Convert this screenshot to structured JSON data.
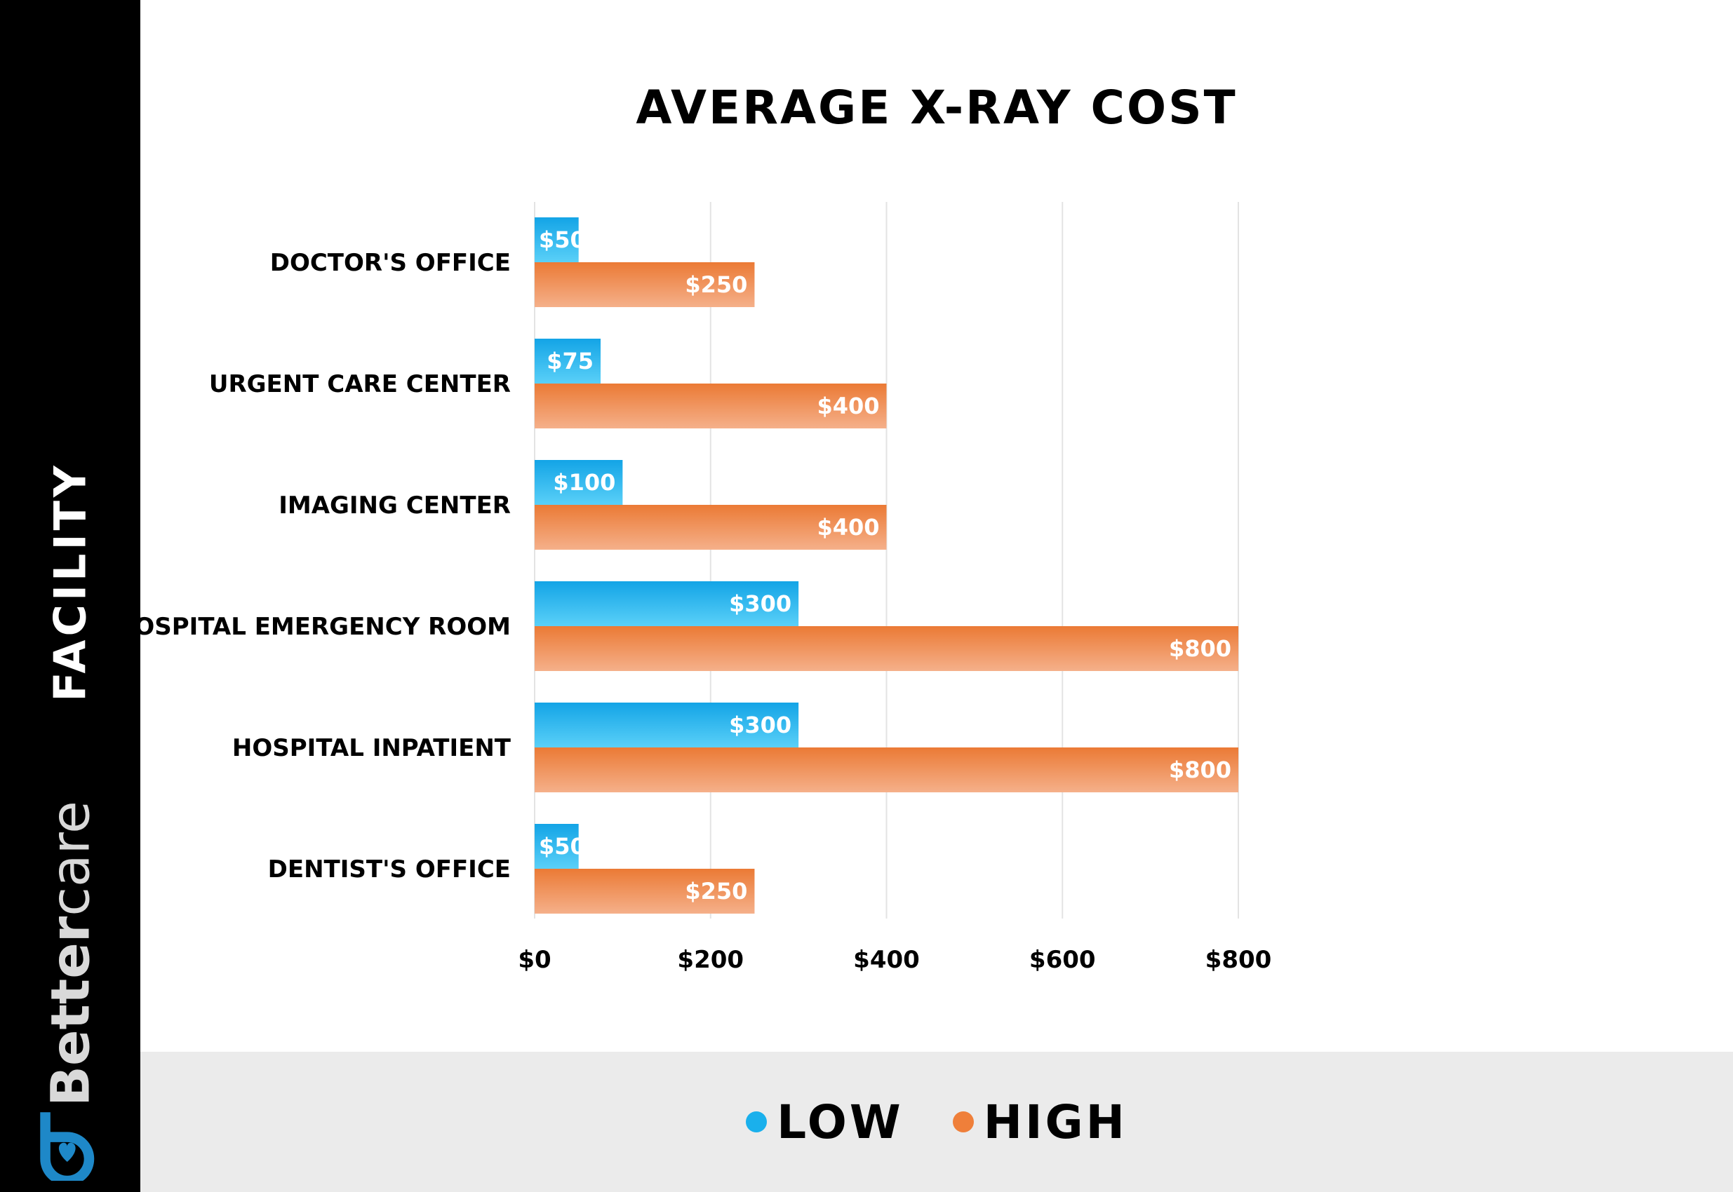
{
  "sidebar": {
    "axis_title": "FACILITY",
    "brand_bold": "Better",
    "brand_light": "care"
  },
  "colors": {
    "low": "#1ab0ec",
    "high": "#ef7f3a",
    "sidebar": "#000000",
    "legend_band": "#ebebeb",
    "brand_icon": "#1e88c8"
  },
  "legend": {
    "low_label": "LOW",
    "high_label": "HIGH"
  },
  "chart_data": {
    "type": "bar",
    "orientation": "horizontal",
    "title": "AVERAGE X-RAY COST",
    "ylabel": "FACILITY",
    "categories": [
      "DOCTOR'S OFFICE",
      "URGENT CARE CENTER",
      "IMAGING CENTER",
      "HOSPITAL EMERGENCY ROOM",
      "HOSPITAL INPATIENT",
      "DENTIST'S OFFICE"
    ],
    "series": [
      {
        "name": "LOW",
        "values": [
          50,
          75,
          100,
          300,
          300,
          50
        ],
        "labels": [
          "$50",
          "$75",
          "$100",
          "$300",
          "$300",
          "$50"
        ]
      },
      {
        "name": "HIGH",
        "values": [
          250,
          400,
          400,
          800,
          800,
          250
        ],
        "labels": [
          "$250",
          "$400",
          "$400",
          "$800",
          "$800",
          "$250"
        ]
      }
    ],
    "xlim": [
      0,
      800
    ],
    "xticks": [
      0,
      200,
      400,
      600,
      800
    ],
    "xtick_labels": [
      "$0",
      "$200",
      "$400",
      "$600",
      "$800"
    ],
    "grid": true,
    "legend_position": "bottom"
  }
}
